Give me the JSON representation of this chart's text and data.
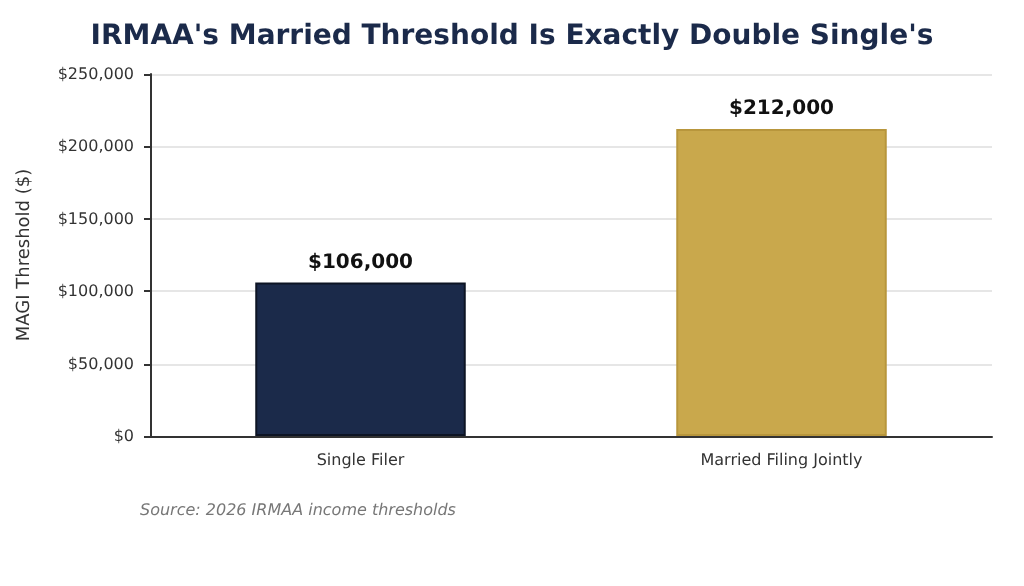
{
  "chart_data": {
    "type": "bar",
    "title": "IRMAA's Married Threshold Is Exactly Double Single's",
    "ylabel": "MAGI Threshold ($)",
    "categories": [
      "Single Filer",
      "Married Filing Jointly"
    ],
    "values": [
      106000,
      212000
    ],
    "colors": [
      "#1b2a4a",
      "#c9a84c"
    ],
    "value_labels": [
      "$106,000",
      "$212,000"
    ],
    "ylim": [
      0,
      250000
    ],
    "yticks": [
      {
        "value": 0,
        "label": "$0"
      },
      {
        "value": 50000,
        "label": "$50,000"
      },
      {
        "value": 100000,
        "label": "$100,000"
      },
      {
        "value": 150000,
        "label": "$150,000"
      },
      {
        "value": 200000,
        "label": "$200,000"
      },
      {
        "value": 250000,
        "label": "$250,000"
      }
    ],
    "grid": "y",
    "annotations": [
      "Source: 2026 IRMAA income thresholds"
    ]
  }
}
